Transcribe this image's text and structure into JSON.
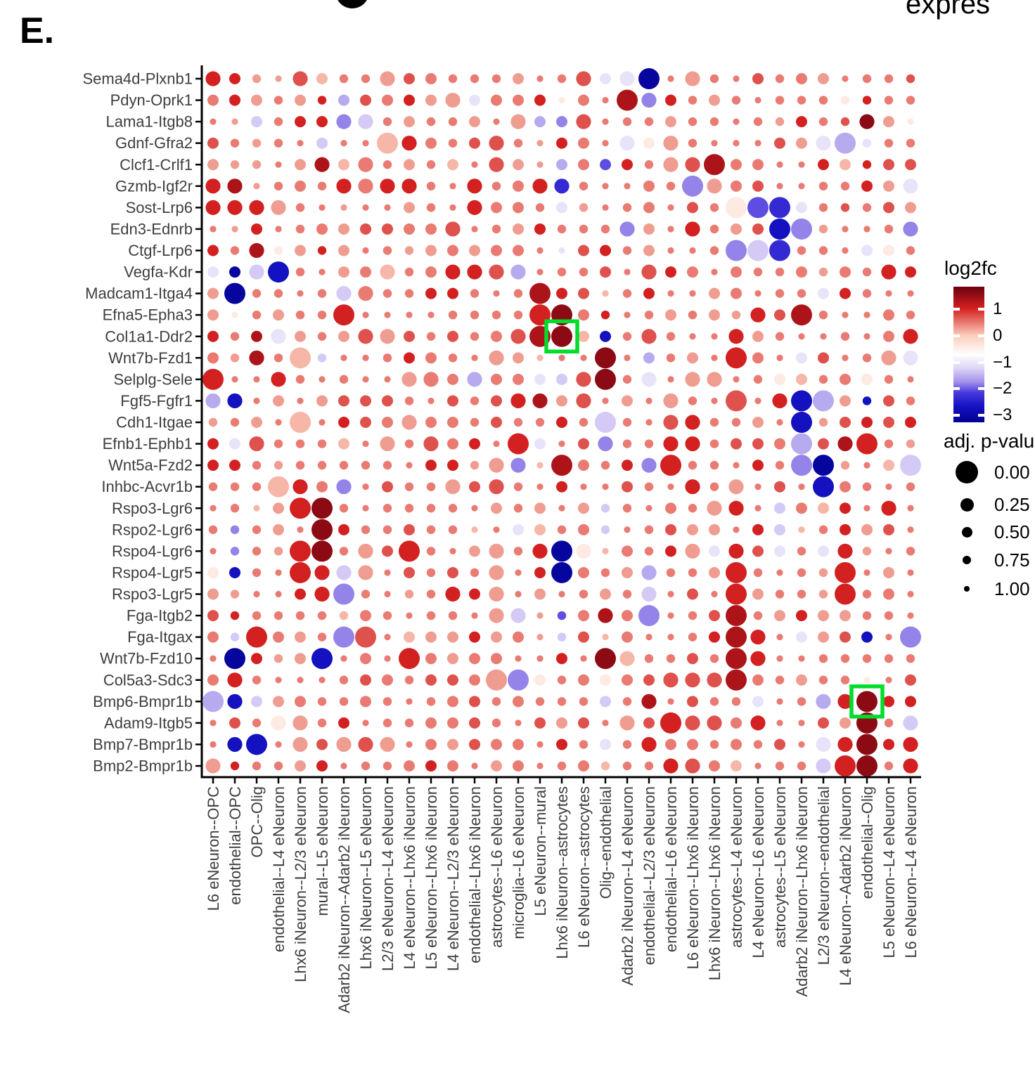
{
  "panel": {
    "label": "E."
  },
  "cropped": {
    "top_right_text": "expres",
    "top_circle_note": "partial black dot cropped from panel above"
  },
  "chart_data": {
    "type": "scatter",
    "subtype": "dot-matrix (ligand-receptor interaction bubble plot); color = log2fc, size = adj. p-value",
    "title": "",
    "xlabel": "",
    "ylabel": "",
    "grid": false,
    "legend_position": "right",
    "y_categories": [
      "Sema4d-Plxnb1",
      "Pdyn-Oprk1",
      "Lama1-Itgb8",
      "Gdnf-Gfra2",
      "Clcf1-Crlf1",
      "Gzmb-Igf2r",
      "Sost-Lrp6",
      "Edn3-Ednrb",
      "Ctgf-Lrp6",
      "Vegfa-Kdr",
      "Madcam1-Itga4",
      "Efna5-Epha3",
      "Col1a1-Ddr2",
      "Wnt7b-Fzd1",
      "Selplg-Sele",
      "Fgf5-Fgfr1",
      "Cdh1-Itgae",
      "Efnb1-Ephb1",
      "Wnt5a-Fzd2",
      "Inhbc-Acvr1b",
      "Rspo3-Lgr6",
      "Rspo2-Lgr6",
      "Rspo4-Lgr6",
      "Rspo4-Lgr5",
      "Rspo3-Lgr5",
      "Fga-Itgb2",
      "Fga-Itgax",
      "Wnt7b-Fzd10",
      "Col5a3-Sdc3",
      "Bmp6-Bmpr1b",
      "Adam9-Itgb5",
      "Bmp7-Bmpr1b",
      "Bmp2-Bmpr1b"
    ],
    "x_categories": [
      "L6 eNeuron--OPC",
      "endothelial--OPC",
      "OPC--Olig",
      "endothelial--L4 eNeuron",
      "Lhx6 iNeuron--L2/3 eNeuron",
      "mural--L5 eNeuron",
      "Adarb2 iNeuron--Adarb2 iNeuron",
      "Lhx6 iNeuron--L5 eNeuron",
      "L2/3 eNeuron--L4 eNeuron",
      "L4 eNeuron--Lhx6 iNeuron",
      "L5 eNeuron--Lhx6 iNeuron",
      "L4 eNeuron--L2/3 eNeuron",
      "endothelial--Lhx6 iNeuron",
      "astrocytes--L6 eNeuron",
      "microglia--L6 eNeuron",
      "L5 eNeuron--mural",
      "Lhx6 iNeuron--astrocytes",
      "L6 eNeuron--astrocytes",
      "Olig--endothelial",
      "Adarb2 iNeuron--L4 eNeuron",
      "endothelial--L2/3 eNeuron",
      "endothelial--L6 eNeuron",
      "L6 eNeuron--Lhx6 iNeuron",
      "Lhx6 iNeuron--Lhx6 iNeuron",
      "astrocytes--L4 eNeuron",
      "L4 eNeuron--L6 eNeuron",
      "astrocytes--L5 eNeuron",
      "Adarb2 iNeuron--Lhx6 iNeuron",
      "L2/3 eNeuron--endothelial",
      "L4 eNeuron--Adarb2 iNeuron",
      "endothelial--Olig",
      "L5 eNeuron--L4 eNeuron",
      "L6 eNeuron--L4 eNeuron"
    ],
    "cell_encoding": {
      "note": "each matrix cell = 2 chars: color code (log2fc) + size code (adj. p-value)",
      "color_codes": {
        "M": 1.6,
        "D": 1.35,
        "K": 1.05,
        "R": 0.75,
        "o": 0.5,
        "p": 0.3,
        "w": 0.15,
        "W": -0.4,
        "v": -1.05,
        "l": -1.3,
        "L": -1.55,
        "U": -1.8,
        "V": -2.05,
        "B": -2.35,
        "N": -2.7,
        "n": -3.1
      },
      "size_codes": {
        "1": 0.0,
        "2": 0.2,
        "3": 0.4,
        "4": 0.6,
        "5": 0.8,
        "6": 1.0
      }
    },
    "matrix": [
      "K2K3p4p5R2w3o4o4p2R3o3o4o4o4p3o5o4R2v3v2n1o5p2o4o5R3o4o3p3o5o4o4R4",
      "o3K3p3o4p3K4L3R3o3K3p3p2v3o3o3K3W5o3o5D1U2K3o4p3o4o5o4o4o4W4K4o4o4",
      "o5p5l3o4K3K3U2l2o4p3o4o4p3o5p2L3U3R2o5o4o4p3o4o4o5o4p4K3o4R4M2p3W5",
      "R3o4p4o4o5l3o5o5w1K2o3o4R3R2o4p5K3o3o5v2W3p2o4o5o5o5R3p3v2L1v4o4o4",
      "p3p4p4o5p3D2w3o2o4p3o4w3o5R2p3p5L3o3V3K3o4p2R2D1o3o3o5o5K3w3K4R3R3",
      "K2D2p5o4o3o4K2o2K2K2o4o5K2o4o3K2B2o4o5o5o3o4U1p2o3R3o5o5o4o4K3p3v2",
      "K2K2K2p2o4o5p5o5o5p3o4o5K2o3o3o4v3p4o5o4o3o5R3o4W1V1B1v3o4R4o4R3p3",
      "o5p5K3o5o4o3p3R3R3o3o3R2o5o4p3K3o4o4o4U2p3o5K2o4p3R3N1U1p4o5o5o4U2",
      "K3o4D2W4p3K4p3o5o4p4p3o3p3o3o3o5v5R3K3o4p3o5o5o4U1l1B1o4o4o5v3W3o4",
      "v3n3l2N1o4o5p3o3w2o4o3K2K2R2L2o5o4o4R3o5R2K3o3o5o3o4o4o3p4o3o4K2K3",
      "p3n1o4o4o5o4l2o2o4o4K3K3o4o5o4D1K3R3w5o4K3o5o5p3o3o5o4o4v3K3o4o5o5",
      "p3W5o4p3o4o4K1o5o5o5o5o4o4o4o4K1M1o3K4o5o4p3o4p3p4K2R3D1o4o5o5o3o4",
      "K3o4D3v2p3o4p3R2p2R3o4R3o4o3R2D1M1w3N3o4R2o4o5o5K2p3o4o5o5o4o5o3K2",
      "o3p4D2o4w1l4o5o5o4K3o3o4o5p2p3w5o5o5M1o5L3o4p3o5K1o3o5v3R3o5o4p2v2",
      "K1o5o5K2o4o5o4o5o5p2o2o3L2o3o3v3l3R2M1o4v2o5p2p2o5o4W3w3o4o3W3o4o5",
      "L2N2o5p3o5p3R3R3R3o4o5R3o4R3K2D2p3R2o5p3o5p2o4o5R1o5K2N1L1p3N4R3o4",
      "p4o4p3o5w1o5K3R3o3p2o3o3o4R3o4o4K3o4l1o4o5R2K2o4o4p3o5N1p4R3K3R3K3",
      "K3v3R2o4o4o4w3o5p2o4R2o3K3o5K1v3o5R3U2o4o4K2K2o4R3R3o3L1R3D2K1o4p4",
      "K3K3o4p4o4o4o4o4o4o5K3K3p4p2U2w5D1o3o4K3U2K1o4o4o5K3o4U1n1p4o5w3l1",
      "o4o4o4w1K2o3U2o5R3o4o4p2R3R2o4o5K3o5o5R3o4o5K2o4p2o5R3o5N1o3o4o5o4",
      "o5o4w5p3K1M1o4o5o4o4o4o4o5p3o4p3o5p3l4o4o5o3o4p2K2o5l3o3w3K3o5K2o5",
      "o4U4o4p3o5M1K3o4o4R3o4o4w5o5v3w3o4o3l4o5o4R3p3p3o5K3l3w5o4K3p3R3o5",
      "o5U4o4p4K1M1o4p2R3K1o4o5p3p2o4K2n1W2w5o3o4K3p2v3K2R3v3o4v3K2p4o5o4",
      "W3N3o4o5K1K2l2p2o5R3o4R3o4p2o5K3n1o3o4p3L2o4o4p3K1o4o5o4p4K1o5p3o5",
      "p3p4o5o5K3K2U1o4o5p4o4K2K3p2o5p3o5o4p3o4l2o5R3o5K1p3o4o4p4K1o4o3o5",
      "R3K4o4o4o4o4w4o3o4o5o4o4o5p2l2p5V4o3D2o3U1o5o4R3D1o4p3K3p3p3o4o4o5",
      "o3l4K1o3p3o4U1R1o5w3p3p3K3p3o3p5l4R3w5o3o5o5o4K3D1K2o5v3p3R3N3o5U1",
      "o5n1K3p4p3N1o5o3o5K1o3p3o3o3o5o5K3o5M1w2o4o4R3o4D1K2o5o5o4o4o4o4o4",
      "o3K2o4o5o5o5o4R3o3o4R3R3o3p1U1W3o4o3W3o3R3R2R2R2D1o3o4p3o4o4W5o5R3",
      "L1N2l3p3o3o4o4o3o4o5o4o3R3o4o3o4o4o4l3o4D2o5R3o4o4v3o5o4L2K2M1K3K3",
      "o5R3o4W2p2o4K3o5o4o4o3o3R3o4o5R3p3R3o5p2R3K1R2R2o3K2o5o5R3p3M1o4l2",
      "o5N2N1o5p2R3p2R2p2o5o3p3R3o3o3o5K3o4v3o4K2o3o3o4o3o4R3o5v2K2M1K3K2",
      "p2K4o4o4p3K3o5o4o4o3K3o3o5p3o3o5o4o3w4o4o4K2R2o3w3o5o4o4l2K1M1o4K2"
    ],
    "highlights": [
      {
        "row": "Col1a1-Ddr2",
        "col": "Lhx6 iNeuron--astrocytes",
        "color": "#00dd2a"
      },
      {
        "row": "Bmp6-Bmpr1b",
        "col": "endothelial--Olig",
        "color": "#00dd2a"
      }
    ],
    "color_legend": {
      "title": "log2fc",
      "ticks": [
        1,
        0,
        -1,
        -2,
        -3
      ],
      "tick_labels": [
        "1",
        "0",
        "−1",
        "−2",
        "−3"
      ]
    },
    "size_legend": {
      "title": "adj. p-value",
      "entries": [
        {
          "label": "0.00",
          "p": 0.0
        },
        {
          "label": "0.25",
          "p": 0.25
        },
        {
          "label": "0.50",
          "p": 0.5
        },
        {
          "label": "0.75",
          "p": 0.75
        },
        {
          "label": "1.00",
          "p": 1.0
        }
      ]
    },
    "color_scale_stops": [
      [
        0.0,
        "#6b000e"
      ],
      [
        0.16,
        "#d42020"
      ],
      [
        0.36,
        "#fbcdbd"
      ],
      [
        0.5,
        "#ffffff"
      ],
      [
        0.6,
        "#ded5f7"
      ],
      [
        0.7,
        "#a493ea"
      ],
      [
        0.78,
        "#4a3ade"
      ],
      [
        0.88,
        "#1512c4"
      ],
      [
        1.0,
        "#000090"
      ]
    ],
    "value_to_fraction": {
      "intercept": 0.363,
      "slope": -0.195
    },
    "p_to_radius": [
      [
        0,
        15
      ],
      [
        0.25,
        9.5
      ],
      [
        0.5,
        7
      ],
      [
        0.75,
        5
      ],
      [
        1,
        3
      ]
    ],
    "axis_color": "#000000",
    "label_color": "#3e3e3e"
  }
}
